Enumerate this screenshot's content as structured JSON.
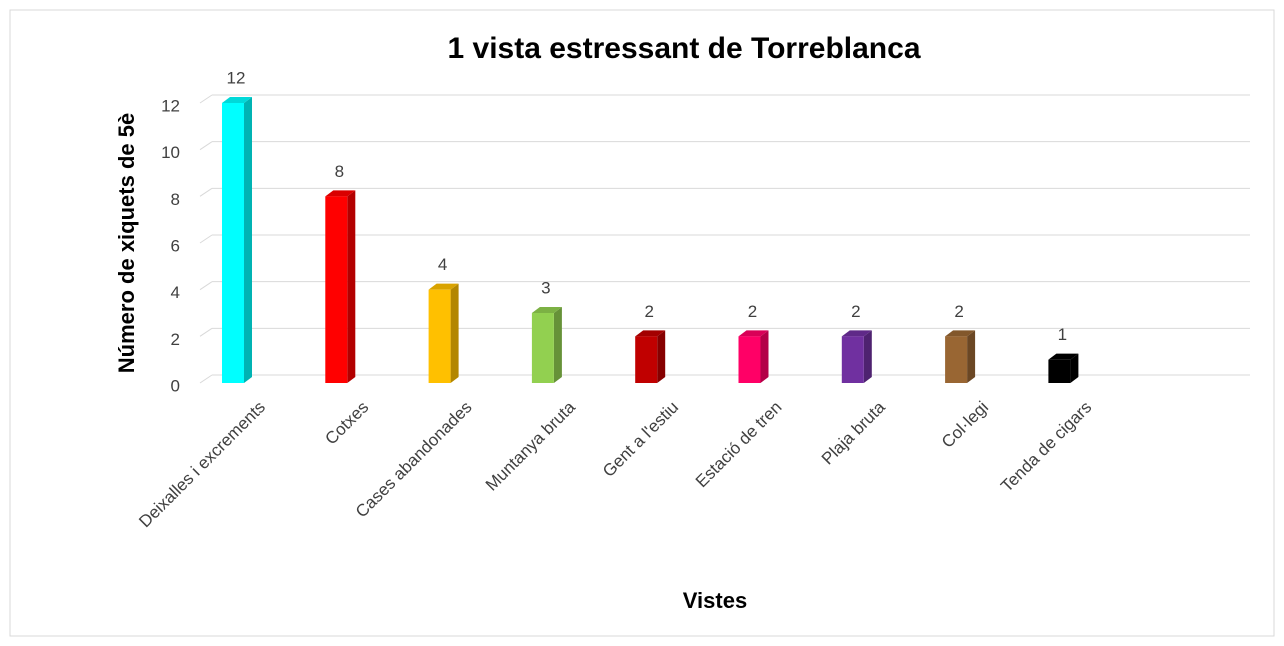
{
  "chart_data": {
    "type": "bar3d",
    "title": "1 vista estressant de Torreblanca",
    "x_label": "Vistes",
    "y_label": "Número de xiquets de 5è",
    "categories": [
      "Deixalles i excrements",
      "Cotxes",
      "Cases abandonades",
      "Muntanya bruta",
      "Gent a l'estiu",
      "Estació de tren",
      "Plaja bruta",
      "Col·legi",
      "Tenda de cigars"
    ],
    "values": [
      12,
      8,
      4,
      3,
      2,
      2,
      2,
      2,
      1
    ],
    "colors": [
      "#00FFFF",
      "#FF0000",
      "#FFC000",
      "#92D050",
      "#C00000",
      "#FF0066",
      "#7030A0",
      "#996633",
      "#000000"
    ],
    "ylim": [
      0,
      12
    ],
    "yticks": [
      0,
      2,
      4,
      6,
      8,
      10,
      12
    ],
    "grid": true
  }
}
